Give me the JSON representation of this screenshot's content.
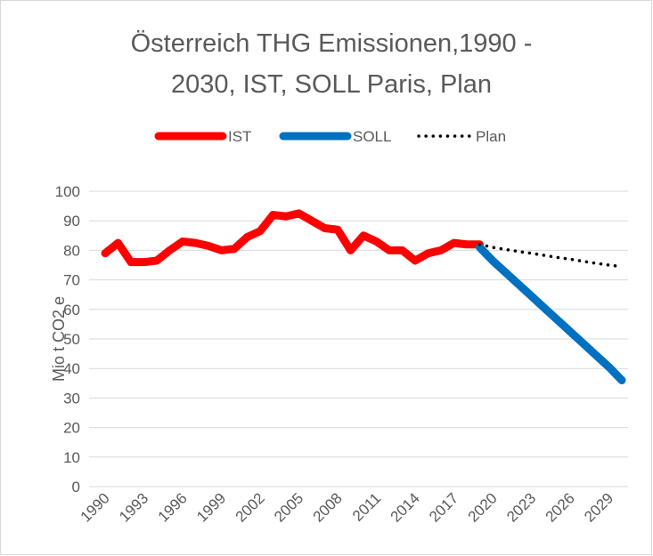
{
  "chart_data": {
    "type": "line",
    "title": [
      "Österreich THG Emissionen,1990 -",
      "2030, IST, SOLL Paris, Plan"
    ],
    "y_label": "Mio t CO2 e",
    "categories": [
      "1990",
      null,
      null,
      "1993",
      null,
      null,
      "1996",
      null,
      null,
      "1999",
      null,
      null,
      "2002",
      null,
      null,
      "2005",
      null,
      null,
      "2008",
      null,
      null,
      "2011",
      null,
      null,
      "2014",
      null,
      null,
      "2017",
      null,
      null,
      "2020",
      null,
      null,
      "2023",
      null,
      null,
      "2026",
      null,
      null,
      "2029",
      null
    ],
    "series": [
      {
        "name": "IST",
        "color": "#ff0000",
        "style": "solid",
        "width": 9,
        "values": [
          79,
          82.5,
          76,
          76,
          76.5,
          80,
          83,
          82.5,
          81.5,
          80,
          80.5,
          84.5,
          86.5,
          92,
          91.5,
          92.5,
          90,
          87.5,
          87,
          80,
          85,
          83,
          80,
          80,
          76.5,
          79,
          80,
          82.5,
          82,
          82,
          null,
          null,
          null,
          null,
          null,
          null,
          null,
          null,
          null,
          null,
          null
        ]
      },
      {
        "name": "SOLL",
        "color": "#0070c0",
        "style": "solid",
        "width": 9,
        "values": [
          null,
          null,
          null,
          null,
          null,
          null,
          null,
          null,
          null,
          null,
          null,
          null,
          null,
          null,
          null,
          null,
          null,
          null,
          null,
          null,
          null,
          null,
          null,
          null,
          null,
          null,
          null,
          null,
          null,
          81,
          76.5,
          72.5,
          68.5,
          64.5,
          60.5,
          56.5,
          52.5,
          48.5,
          44.5,
          40.5,
          36
        ]
      },
      {
        "name": "Plan",
        "color": "#000000",
        "style": "dotted",
        "width": 3.5,
        "values": [
          null,
          null,
          null,
          null,
          null,
          null,
          null,
          null,
          null,
          null,
          null,
          null,
          null,
          null,
          null,
          null,
          null,
          null,
          null,
          null,
          null,
          null,
          null,
          null,
          null,
          null,
          null,
          null,
          null,
          82,
          81,
          80.3,
          79.6,
          79,
          78.3,
          77.6,
          77,
          76.3,
          75.6,
          75,
          74.5
        ]
      }
    ],
    "ylim": [
      0,
      100
    ],
    "yticks": [
      0,
      10,
      20,
      30,
      40,
      50,
      60,
      70,
      80,
      90,
      100
    ],
    "grid": true,
    "legend": "top"
  }
}
